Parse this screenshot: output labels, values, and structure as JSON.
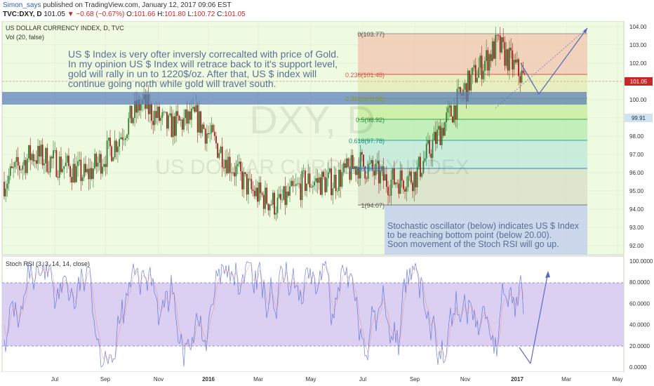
{
  "header": {
    "author": "Simon_says",
    "published_text": "published on TradingView.com, January 12, 2017 09:06 EST",
    "symbol": "TVC:DXY, D",
    "last": "101.05",
    "change_arrow": "▼",
    "change": "−0.68 (−0.67%)",
    "ohlc_labels": [
      "O:",
      "H:",
      "L:",
      "C:"
    ],
    "ohlc_values": [
      "101.66",
      "101.80",
      "100.72",
      "101.05"
    ]
  },
  "main_pane": {
    "title": "US DOLLAR CURRENCY INDEX, D, TVC",
    "vol_label": "Vol (20, false)",
    "watermark_symbol": "DXY, D",
    "watermark_name": "US DOLLAR CURRENCY INDEX",
    "note_top": [
      "US $ Index is very ofter inversly correcalted with price of Gold.",
      "In my opinion  US $ Index will retrace back to it's support level,",
      "gold will rally in un to 1220$/oz. After that, US $ index will",
      "continue going north while gold will travel south."
    ],
    "note_bottom": [
      "Stochastic oscillator (below) indicates US $ Index",
      "to be reaching bottom point (below 20.00).",
      "Soon movement of the Stoch RSI will go up."
    ],
    "fib_labels": [
      "0(103.77)",
      "0.236(101.48)",
      "0.382(100.06)",
      "0.5(98.92)",
      "0.618(97.78)",
      "0.786(96.15)",
      "1(94.07)"
    ],
    "price_ticks": [
      "104.00",
      "103.00",
      "102.00",
      "101.00",
      "100.00",
      "99.00",
      "98.00",
      "97.00",
      "96.00",
      "95.00",
      "94.00",
      "93.00",
      "92.00"
    ],
    "last_price_tag": "101.05",
    "line_tag": "99.91"
  },
  "stoch_pane": {
    "title": "Stoch RSI (3, 3, 14, 14, close)",
    "ticks": [
      "100.0000",
      "80.0000",
      "60.0000",
      "40.0000",
      "20.0000",
      "0.0000"
    ]
  },
  "x_axis": {
    "labels": [
      "Jul",
      "Sep",
      "Nov",
      "2016",
      "Mar",
      "May",
      "Jul",
      "Sep",
      "Nov",
      "2017",
      "Mar",
      "May"
    ]
  },
  "colors": {
    "pane_bg": "#eefbe0",
    "up": "#2e7d32",
    "down": "#a02020",
    "support_band": "#5a7dbb",
    "stoch_band": "#d6c8f0",
    "annotation_text": "#5a6f94",
    "arrow": "#5c6bc0"
  },
  "chart_data": {
    "type": "line",
    "title": "US DOLLAR CURRENCY INDEX, D, TVC",
    "x": [
      "Jun 2015",
      "Jul 2015",
      "Aug 2015",
      "Sep 2015",
      "Oct 2015",
      "Nov 2015",
      "Dec 2015",
      "Jan 2016",
      "Feb 2016",
      "Mar 2016",
      "Apr 2016",
      "May 2016",
      "Jun 2016",
      "Jul 2016",
      "Aug 2016",
      "Sep 2016",
      "Oct 2016",
      "Nov 2016",
      "Dec 2016",
      "Jan 2017"
    ],
    "series": [
      {
        "values": [
          95.5,
          97.0,
          96.5,
          95.8,
          97.5,
          99.8,
          98.5,
          99.0,
          97.0,
          95.0,
          94.2,
          95.5,
          95.5,
          96.5,
          95.5,
          95.8,
          98.5,
          101.0,
          103.0,
          101.05
        ]
      }
    ],
    "ylim": [
      91.5,
      104.3
    ],
    "grid": true,
    "fibonacci": {
      "levels": [
        0,
        0.236,
        0.382,
        0.5,
        0.618,
        0.786,
        1
      ],
      "prices": [
        103.77,
        101.48,
        100.06,
        98.92,
        97.78,
        96.15,
        94.07
      ]
    },
    "support_zone": [
      99.8,
      100.5
    ],
    "stoch_rsi": {
      "ylim": [
        0,
        100
      ],
      "band": [
        20,
        80
      ],
      "params": "3, 3, 14, 14, close"
    }
  }
}
